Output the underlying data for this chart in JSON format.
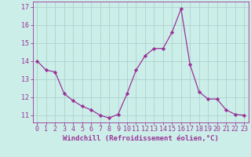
{
  "x": [
    0,
    1,
    2,
    3,
    4,
    5,
    6,
    7,
    8,
    9,
    10,
    11,
    12,
    13,
    14,
    15,
    16,
    17,
    18,
    19,
    20,
    21,
    22,
    23
  ],
  "y": [
    14.0,
    13.5,
    13.4,
    12.2,
    11.8,
    11.5,
    11.3,
    11.0,
    10.85,
    11.05,
    12.2,
    13.5,
    14.3,
    14.7,
    14.7,
    15.6,
    16.9,
    13.8,
    12.3,
    11.9,
    11.9,
    11.3,
    11.05,
    11.0
  ],
  "line_color": "#993399",
  "marker": "D",
  "marker_size": 2.2,
  "bg_color": "#cceee8",
  "grid_color": "#aacccc",
  "xlabel": "Windchill (Refroidissement éolien,°C)",
  "ylabel_ticks": [
    11,
    12,
    13,
    14,
    15,
    16,
    17
  ],
  "xlabel_ticks": [
    0,
    1,
    2,
    3,
    4,
    5,
    6,
    7,
    8,
    9,
    10,
    11,
    12,
    13,
    14,
    15,
    16,
    17,
    18,
    19,
    20,
    21,
    22,
    23
  ],
  "ylim": [
    10.6,
    17.3
  ],
  "xlim": [
    -0.5,
    23.5
  ],
  "line_color2": "#993399",
  "axis_color": "#993399",
  "tick_color": "#993399",
  "xlabel_fontsize": 6.5,
  "tick_fontsize": 6.0,
  "linewidth": 0.9
}
